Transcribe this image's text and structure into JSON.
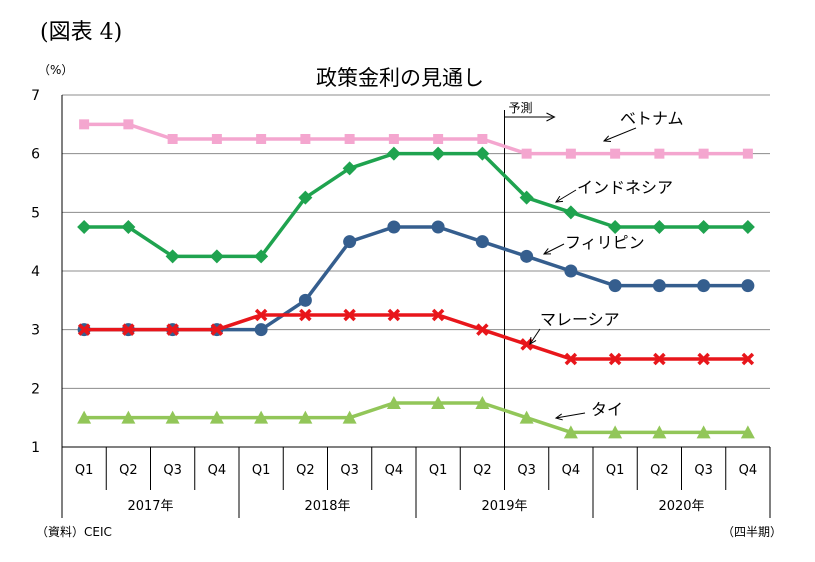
{
  "figure_label": "(図表 4)",
  "source_note": "（資料）CEIC",
  "period_note": "（四半期）",
  "forecast_label": "予測",
  "chart_data": {
    "type": "line",
    "title": "政策金利の見通し",
    "ylabel": "（%）",
    "ylim": [
      1,
      7
    ],
    "yticks": [
      1,
      2,
      3,
      4,
      5,
      6,
      7
    ],
    "grid": true,
    "categories": [
      "Q1",
      "Q2",
      "Q3",
      "Q4",
      "Q1",
      "Q2",
      "Q3",
      "Q4",
      "Q1",
      "Q2",
      "Q3",
      "Q4",
      "Q1",
      "Q2",
      "Q3",
      "Q4"
    ],
    "years": [
      {
        "label": "2017年",
        "span": 4
      },
      {
        "label": "2018年",
        "span": 4
      },
      {
        "label": "2019年",
        "span": 4
      },
      {
        "label": "2020年",
        "span": 4
      }
    ],
    "forecast_start_after_index": 9,
    "series": [
      {
        "name": "ベトナム",
        "color": "#f4a6cf",
        "marker": "square",
        "values": [
          6.5,
          6.5,
          6.25,
          6.25,
          6.25,
          6.25,
          6.25,
          6.25,
          6.25,
          6.25,
          6.0,
          6.0,
          6.0,
          6.0,
          6.0,
          6.0
        ]
      },
      {
        "name": "インドネシア",
        "color": "#1fa34f",
        "marker": "diamond",
        "values": [
          4.75,
          4.75,
          4.25,
          4.25,
          4.25,
          5.25,
          5.75,
          6.0,
          6.0,
          6.0,
          5.25,
          5.0,
          4.75,
          4.75,
          4.75,
          4.75
        ]
      },
      {
        "name": "フィリピン",
        "color": "#355e8e",
        "marker": "circle",
        "values": [
          3.0,
          3.0,
          3.0,
          3.0,
          3.0,
          3.5,
          4.5,
          4.75,
          4.75,
          4.5,
          4.25,
          4.0,
          3.75,
          3.75,
          3.75,
          3.75
        ]
      },
      {
        "name": "マレーシア",
        "color": "#e8161b",
        "marker": "x",
        "values": [
          3.0,
          3.0,
          3.0,
          3.0,
          3.25,
          3.25,
          3.25,
          3.25,
          3.25,
          3.0,
          2.75,
          2.5,
          2.5,
          2.5,
          2.5,
          2.5
        ]
      },
      {
        "name": "タイ",
        "color": "#92c659",
        "marker": "triangle",
        "values": [
          1.5,
          1.5,
          1.5,
          1.5,
          1.5,
          1.5,
          1.5,
          1.75,
          1.75,
          1.75,
          1.5,
          1.25,
          1.25,
          1.25,
          1.25,
          1.25
        ]
      }
    ]
  }
}
